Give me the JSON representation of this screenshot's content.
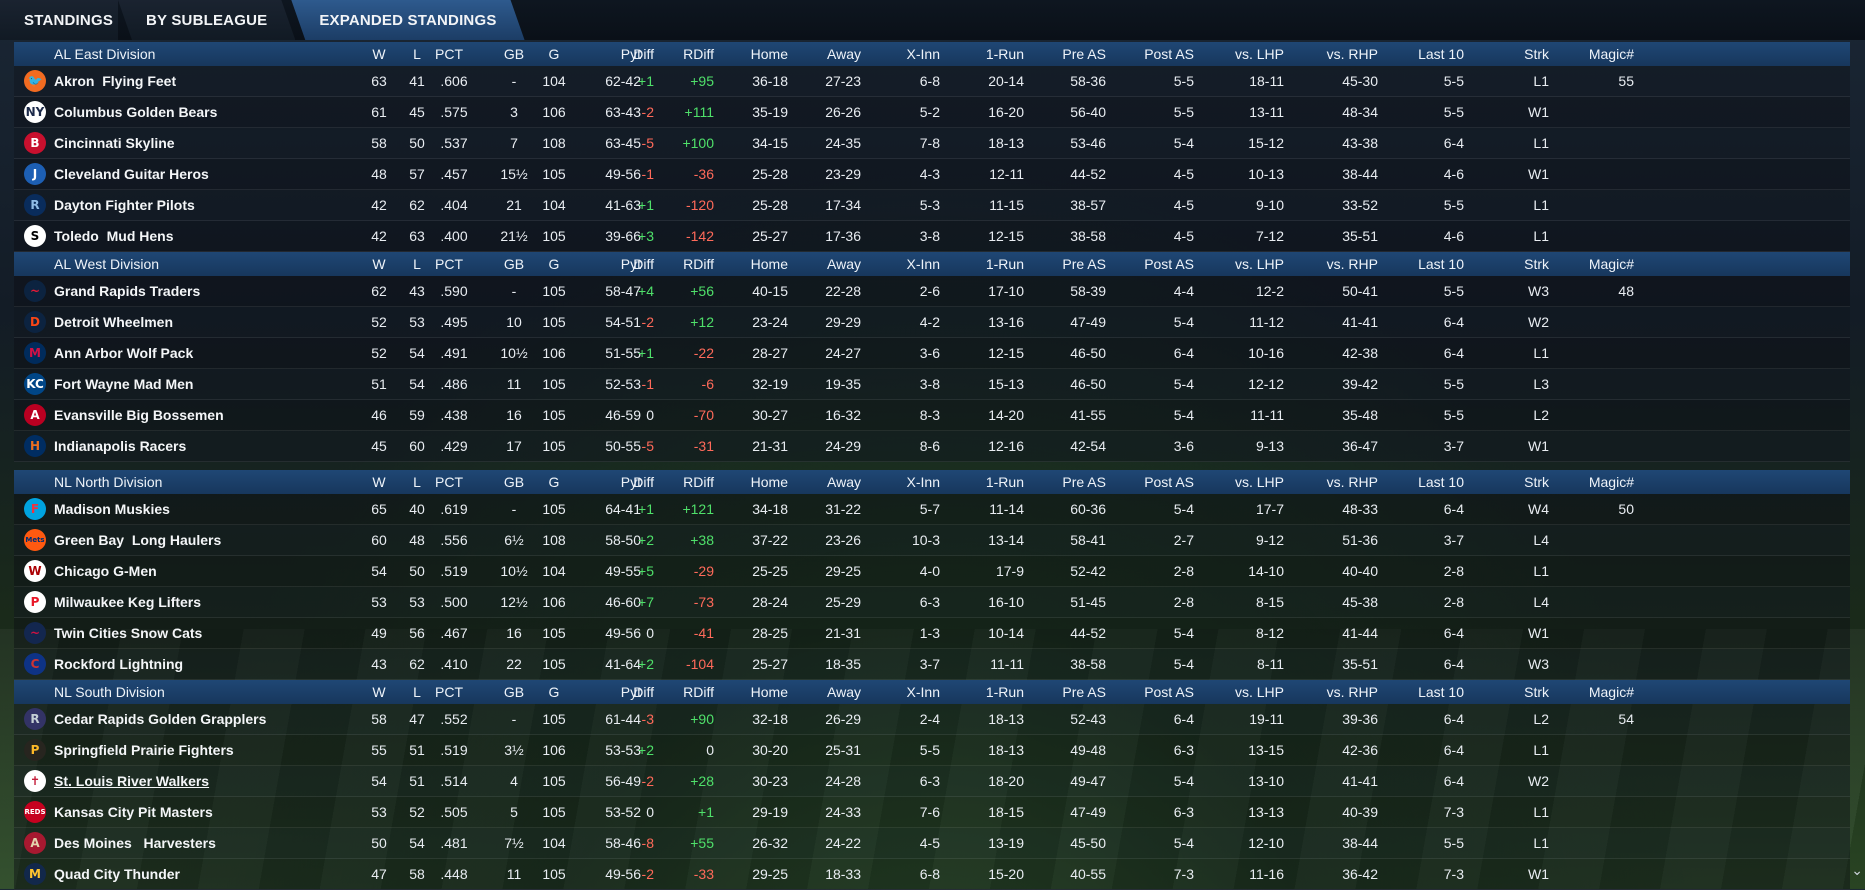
{
  "tabs": [
    {
      "label": "STANDINGS",
      "active": false
    },
    {
      "label": "BY SUBLEAGUE",
      "active": false
    },
    {
      "label": "EXPANDED STANDINGS",
      "active": true
    }
  ],
  "columns": [
    "W",
    "L",
    "PCT",
    "GB",
    "G",
    "Pyt",
    "Diff",
    "RDiff",
    "Home",
    "Away",
    "X-Inn",
    "1-Run",
    "Pre AS",
    "Post AS",
    "vs. LHP",
    "vs. RHP",
    "Last 10",
    "Strk",
    "Magic#"
  ],
  "divisions": [
    {
      "name": "AL East Division",
      "teams": [
        {
          "logo": "oriole-logo-icon",
          "logo_bg": "#f26b21",
          "logo_fg": "#000000",
          "glyph": "🐦",
          "name": "Akron  Flying Feet",
          "W": "63",
          "L": "41",
          "PCT": ".606",
          "GB": "-",
          "G": "104",
          "Pyt": "62-42",
          "Diff": "+1",
          "RDiff": "+95",
          "Home": "36-18",
          "Away": "27-23",
          "XInn": "6-8",
          "OneRun": "20-14",
          "PreAS": "58-36",
          "PostAS": "5-5",
          "vsLHP": "18-11",
          "vsRHP": "45-30",
          "Last10": "5-5",
          "Strk": "L1",
          "Magic": "55"
        },
        {
          "logo": "ny-logo-icon",
          "logo_bg": "#ffffff",
          "logo_fg": "#1c2a4a",
          "glyph": "NY",
          "name": "Columbus Golden Bears",
          "W": "61",
          "L": "45",
          "PCT": ".575",
          "GB": "3",
          "G": "106",
          "Pyt": "63-43",
          "Diff": "-2",
          "RDiff": "+111",
          "Home": "35-19",
          "Away": "26-26",
          "XInn": "5-2",
          "OneRun": "16-20",
          "PreAS": "56-40",
          "PostAS": "5-5",
          "vsLHP": "13-11",
          "vsRHP": "48-34",
          "Last10": "5-5",
          "Strk": "W1",
          "Magic": ""
        },
        {
          "logo": "red-sox-logo-icon",
          "logo_bg": "#c8102e",
          "logo_fg": "#ffffff",
          "glyph": "B",
          "name": "Cincinnati Skyline",
          "W": "58",
          "L": "50",
          "PCT": ".537",
          "GB": "7",
          "G": "108",
          "Pyt": "63-45",
          "Diff": "-5",
          "RDiff": "+100",
          "Home": "34-15",
          "Away": "24-35",
          "XInn": "7-8",
          "OneRun": "18-13",
          "PreAS": "53-46",
          "PostAS": "5-4",
          "vsLHP": "15-12",
          "vsRHP": "43-38",
          "Last10": "6-4",
          "Strk": "L1",
          "Magic": ""
        },
        {
          "logo": "blue-jay-logo-icon",
          "logo_bg": "#1d5fb4",
          "logo_fg": "#ffffff",
          "glyph": "J",
          "name": "Cleveland Guitar Heros",
          "W": "48",
          "L": "57",
          "PCT": ".457",
          "GB": "15½",
          "G": "105",
          "Pyt": "49-56",
          "Diff": "-1",
          "RDiff": "-36",
          "Home": "25-28",
          "Away": "23-29",
          "XInn": "4-3",
          "OneRun": "12-11",
          "PreAS": "44-52",
          "PostAS": "4-5",
          "vsLHP": "10-13",
          "vsRHP": "38-44",
          "Last10": "4-6",
          "Strk": "W1",
          "Magic": ""
        },
        {
          "logo": "ray-logo-icon",
          "logo_bg": "#092c5c",
          "logo_fg": "#8fbce6",
          "glyph": "R",
          "name": "Dayton Fighter Pilots",
          "W": "42",
          "L": "62",
          "PCT": ".404",
          "GB": "21",
          "G": "104",
          "Pyt": "41-63",
          "Diff": "+1",
          "RDiff": "-120",
          "Home": "25-28",
          "Away": "17-34",
          "XInn": "5-3",
          "OneRun": "11-15",
          "PreAS": "38-57",
          "PostAS": "4-5",
          "vsLHP": "9-10",
          "vsRHP": "33-52",
          "Last10": "5-5",
          "Strk": "L1",
          "Magic": ""
        },
        {
          "logo": "sox-logo-icon",
          "logo_bg": "#ffffff",
          "logo_fg": "#000000",
          "glyph": "S",
          "name": "Toledo  Mud Hens",
          "W": "42",
          "L": "63",
          "PCT": ".400",
          "GB": "21½",
          "G": "105",
          "Pyt": "39-66",
          "Diff": "+3",
          "RDiff": "-142",
          "Home": "25-27",
          "Away": "17-36",
          "XInn": "3-8",
          "OneRun": "12-15",
          "PreAS": "38-58",
          "PostAS": "4-5",
          "vsLHP": "7-12",
          "vsRHP": "35-51",
          "Last10": "4-6",
          "Strk": "L1",
          "Magic": ""
        }
      ]
    },
    {
      "name": "AL West Division",
      "teams": [
        {
          "logo": "indians-logo-icon",
          "logo_bg": "#0c2340",
          "logo_fg": "#e31937",
          "glyph": "~",
          "name": "Grand Rapids Traders",
          "W": "62",
          "L": "43",
          "PCT": ".590",
          "GB": "-",
          "G": "105",
          "Pyt": "58-47",
          "Diff": "+4",
          "RDiff": "+56",
          "Home": "40-15",
          "Away": "22-28",
          "XInn": "2-6",
          "OneRun": "17-10",
          "PreAS": "58-39",
          "PostAS": "4-4",
          "vsLHP": "12-2",
          "vsRHP": "50-41",
          "Last10": "5-5",
          "Strk": "W3",
          "Magic": "48"
        },
        {
          "logo": "tigers-logo-icon",
          "logo_bg": "#0c2340",
          "logo_fg": "#fa4616",
          "glyph": "D",
          "name": "Detroit Wheelmen",
          "W": "52",
          "L": "53",
          "PCT": ".495",
          "GB": "10",
          "G": "105",
          "Pyt": "54-51",
          "Diff": "-2",
          "RDiff": "+12",
          "Home": "23-24",
          "Away": "29-29",
          "XInn": "4-2",
          "OneRun": "13-16",
          "PreAS": "47-49",
          "PostAS": "5-4",
          "vsLHP": "11-12",
          "vsRHP": "41-41",
          "Last10": "6-4",
          "Strk": "W2",
          "Magic": ""
        },
        {
          "logo": "twins-logo-icon",
          "logo_bg": "#002b5c",
          "logo_fg": "#d31145",
          "glyph": "M",
          "name": "Ann Arbor Wolf Pack",
          "W": "52",
          "L": "54",
          "PCT": ".491",
          "GB": "10½",
          "G": "106",
          "Pyt": "51-55",
          "Diff": "+1",
          "RDiff": "-22",
          "Home": "28-27",
          "Away": "24-27",
          "XInn": "3-6",
          "OneRun": "12-15",
          "PreAS": "46-50",
          "PostAS": "6-4",
          "vsLHP": "10-16",
          "vsRHP": "42-38",
          "Last10": "6-4",
          "Strk": "L1",
          "Magic": ""
        },
        {
          "logo": "royals-logo-icon",
          "logo_bg": "#004687",
          "logo_fg": "#ffffff",
          "glyph": "KC",
          "name": "Fort Wayne Mad Men",
          "W": "51",
          "L": "54",
          "PCT": ".486",
          "GB": "11",
          "G": "105",
          "Pyt": "52-53",
          "Diff": "-1",
          "RDiff": "-6",
          "Home": "32-19",
          "Away": "19-35",
          "XInn": "3-8",
          "OneRun": "15-13",
          "PreAS": "46-50",
          "PostAS": "5-4",
          "vsLHP": "12-12",
          "vsRHP": "39-42",
          "Last10": "5-5",
          "Strk": "L3",
          "Magic": ""
        },
        {
          "logo": "angels-logo-icon",
          "logo_bg": "#ba0021",
          "logo_fg": "#ffffff",
          "glyph": "A",
          "name": "Evansville Big Bossemen",
          "W": "46",
          "L": "59",
          "PCT": ".438",
          "GB": "16",
          "G": "105",
          "Pyt": "46-59",
          "Diff": "0",
          "RDiff": "-70",
          "Home": "30-27",
          "Away": "16-32",
          "XInn": "8-3",
          "OneRun": "14-20",
          "PreAS": "41-55",
          "PostAS": "5-4",
          "vsLHP": "11-11",
          "vsRHP": "35-48",
          "Last10": "5-5",
          "Strk": "L2",
          "Magic": ""
        },
        {
          "logo": "astros-logo-icon",
          "logo_bg": "#002d62",
          "logo_fg": "#eb6e1f",
          "glyph": "H",
          "name": "Indianapolis Racers",
          "W": "45",
          "L": "60",
          "PCT": ".429",
          "GB": "17",
          "G": "105",
          "Pyt": "50-55",
          "Diff": "-5",
          "RDiff": "-31",
          "Home": "21-31",
          "Away": "24-29",
          "XInn": "8-6",
          "OneRun": "12-16",
          "PreAS": "42-54",
          "PostAS": "3-6",
          "vsLHP": "9-13",
          "vsRHP": "36-47",
          "Last10": "3-7",
          "Strk": "W1",
          "Magic": ""
        }
      ]
    },
    {
      "name": "NL North Division",
      "teams": [
        {
          "logo": "marlins-logo-icon",
          "logo_bg": "#00a3e0",
          "logo_fg": "#ef3340",
          "glyph": "F",
          "name": "Madison Muskies",
          "W": "65",
          "L": "40",
          "PCT": ".619",
          "GB": "-",
          "G": "105",
          "Pyt": "64-41",
          "Diff": "+1",
          "RDiff": "+121",
          "Home": "34-18",
          "Away": "31-22",
          "XInn": "5-7",
          "OneRun": "11-14",
          "PreAS": "60-36",
          "PostAS": "5-4",
          "vsLHP": "17-7",
          "vsRHP": "48-33",
          "Last10": "6-4",
          "Strk": "W4",
          "Magic": "50"
        },
        {
          "logo": "mets-logo-icon",
          "logo_bg": "#ff5910",
          "logo_fg": "#002d72",
          "glyph": "Mets",
          "name": "Green Bay  Long Haulers",
          "W": "60",
          "L": "48",
          "PCT": ".556",
          "GB": "6½",
          "G": "108",
          "Pyt": "58-50",
          "Diff": "+2",
          "RDiff": "+38",
          "Home": "37-22",
          "Away": "23-26",
          "XInn": "10-3",
          "OneRun": "13-14",
          "PreAS": "58-41",
          "PostAS": "2-7",
          "vsLHP": "9-12",
          "vsRHP": "51-36",
          "Last10": "3-7",
          "Strk": "L4",
          "Magic": ""
        },
        {
          "logo": "nationals-logo-icon",
          "logo_bg": "#ffffff",
          "logo_fg": "#ab0003",
          "glyph": "W",
          "name": "Chicago G-Men",
          "W": "54",
          "L": "50",
          "PCT": ".519",
          "GB": "10½",
          "G": "104",
          "Pyt": "49-55",
          "Diff": "+5",
          "RDiff": "-29",
          "Home": "25-25",
          "Away": "29-25",
          "XInn": "4-0",
          "OneRun": "17-9",
          "PreAS": "52-42",
          "PostAS": "2-8",
          "vsLHP": "14-10",
          "vsRHP": "40-40",
          "Last10": "2-8",
          "Strk": "L1",
          "Magic": ""
        },
        {
          "logo": "phillies-logo-icon",
          "logo_bg": "#ffffff",
          "logo_fg": "#e81828",
          "glyph": "P",
          "name": "Milwaukee Keg Lifters",
          "W": "53",
          "L": "53",
          "PCT": ".500",
          "GB": "12½",
          "G": "106",
          "Pyt": "46-60",
          "Diff": "+7",
          "RDiff": "-73",
          "Home": "28-24",
          "Away": "25-29",
          "XInn": "6-3",
          "OneRun": "16-10",
          "PreAS": "51-45",
          "PostAS": "2-8",
          "vsLHP": "8-15",
          "vsRHP": "45-38",
          "Last10": "2-8",
          "Strk": "L4",
          "Magic": ""
        },
        {
          "logo": "braves-logo-icon",
          "logo_bg": "#13274f",
          "logo_fg": "#ce1141",
          "glyph": "~",
          "name": "Twin Cities Snow Cats",
          "W": "49",
          "L": "56",
          "PCT": ".467",
          "GB": "16",
          "G": "105",
          "Pyt": "49-56",
          "Diff": "0",
          "RDiff": "-41",
          "Home": "28-25",
          "Away": "21-31",
          "XInn": "1-3",
          "OneRun": "10-14",
          "PreAS": "44-52",
          "PostAS": "5-4",
          "vsLHP": "8-12",
          "vsRHP": "41-44",
          "Last10": "6-4",
          "Strk": "W1",
          "Magic": ""
        },
        {
          "logo": "cubs-logo-icon",
          "logo_bg": "#0e3386",
          "logo_fg": "#cc3433",
          "glyph": "C",
          "name": "Rockford Lightning",
          "W": "43",
          "L": "62",
          "PCT": ".410",
          "GB": "22",
          "G": "105",
          "Pyt": "41-64",
          "Diff": "+2",
          "RDiff": "-104",
          "Home": "25-27",
          "Away": "18-35",
          "XInn": "3-7",
          "OneRun": "11-11",
          "PreAS": "38-58",
          "PostAS": "5-4",
          "vsLHP": "8-11",
          "vsRHP": "35-51",
          "Last10": "6-4",
          "Strk": "W3",
          "Magic": ""
        }
      ]
    },
    {
      "name": "NL South Division",
      "teams": [
        {
          "logo": "rockies-logo-icon",
          "logo_bg": "#333366",
          "logo_fg": "#c4ced4",
          "glyph": "R",
          "name": "Cedar Rapids Golden Grapplers",
          "W": "58",
          "L": "47",
          "PCT": ".552",
          "GB": "-",
          "G": "105",
          "Pyt": "61-44",
          "Diff": "-3",
          "RDiff": "+90",
          "Home": "32-18",
          "Away": "26-29",
          "XInn": "2-4",
          "OneRun": "18-13",
          "PreAS": "52-43",
          "PostAS": "6-4",
          "vsLHP": "19-11",
          "vsRHP": "39-36",
          "Last10": "6-4",
          "Strk": "L2",
          "Magic": "54"
        },
        {
          "logo": "pirates-logo-icon",
          "logo_bg": "#27251f",
          "logo_fg": "#fdb827",
          "glyph": "P",
          "name": "Springfield Prairie Fighters",
          "W": "55",
          "L": "51",
          "PCT": ".519",
          "GB": "3½",
          "G": "106",
          "Pyt": "53-53",
          "Diff": "+2",
          "RDiff": "0",
          "Home": "30-20",
          "Away": "25-31",
          "XInn": "5-5",
          "OneRun": "18-13",
          "PreAS": "49-48",
          "PostAS": "6-3",
          "vsLHP": "13-15",
          "vsRHP": "42-36",
          "Last10": "6-4",
          "Strk": "L1",
          "Magic": ""
        },
        {
          "logo": "cardinals-logo-icon",
          "logo_bg": "#ffffff",
          "logo_fg": "#c41e3a",
          "glyph": "✝",
          "name": "St. Louis River Walkers",
          "W": "54",
          "L": "51",
          "PCT": ".514",
          "GB": "4",
          "G": "105",
          "Pyt": "56-49",
          "Diff": "-2",
          "RDiff": "+28",
          "Home": "30-23",
          "Away": "24-28",
          "XInn": "6-3",
          "OneRun": "18-20",
          "PreAS": "49-47",
          "PostAS": "5-4",
          "vsLHP": "13-10",
          "vsRHP": "41-41",
          "Last10": "6-4",
          "Strk": "W2",
          "Magic": "",
          "highlight": true
        },
        {
          "logo": "reds-logo-icon",
          "logo_bg": "#c6011f",
          "logo_fg": "#ffffff",
          "glyph": "REDS",
          "name": "Kansas City Pit Masters",
          "W": "53",
          "L": "52",
          "PCT": ".505",
          "GB": "5",
          "G": "105",
          "Pyt": "53-52",
          "Diff": "0",
          "RDiff": "+1",
          "Home": "29-19",
          "Away": "24-33",
          "XInn": "7-6",
          "OneRun": "18-15",
          "PreAS": "47-49",
          "PostAS": "6-3",
          "vsLHP": "13-13",
          "vsRHP": "40-39",
          "Last10": "7-3",
          "Strk": "L1",
          "Magic": ""
        },
        {
          "logo": "diamondbacks-logo-icon",
          "logo_bg": "#a71930",
          "logo_fg": "#e3d4ad",
          "glyph": "A",
          "name": "Des Moines   Harvesters",
          "W": "50",
          "L": "54",
          "PCT": ".481",
          "GB": "7½",
          "G": "104",
          "Pyt": "58-46",
          "Diff": "-8",
          "RDiff": "+55",
          "Home": "26-32",
          "Away": "24-22",
          "XInn": "4-5",
          "OneRun": "13-19",
          "PreAS": "45-50",
          "PostAS": "5-4",
          "vsLHP": "12-10",
          "vsRHP": "38-44",
          "Last10": "5-5",
          "Strk": "L1",
          "Magic": ""
        },
        {
          "logo": "brewers-logo-icon",
          "logo_bg": "#12284b",
          "logo_fg": "#ffc52f",
          "glyph": "M",
          "name": "Quad City Thunder",
          "W": "47",
          "L": "58",
          "PCT": ".448",
          "GB": "11",
          "G": "105",
          "Pyt": "49-56",
          "Diff": "-2",
          "RDiff": "-33",
          "Home": "29-25",
          "Away": "18-33",
          "XInn": "6-8",
          "OneRun": "15-20",
          "PreAS": "40-55",
          "PostAS": "7-3",
          "vsLHP": "11-16",
          "vsRHP": "36-42",
          "Last10": "7-3",
          "Strk": "W1",
          "Magic": ""
        }
      ]
    }
  ],
  "colors": {
    "positive": "#4fe06a",
    "negative": "#ff6a5a",
    "header_bg": "#1f4775",
    "tab_active": "#2e5a8e"
  },
  "scroll_icon": "chevron-down-icon"
}
